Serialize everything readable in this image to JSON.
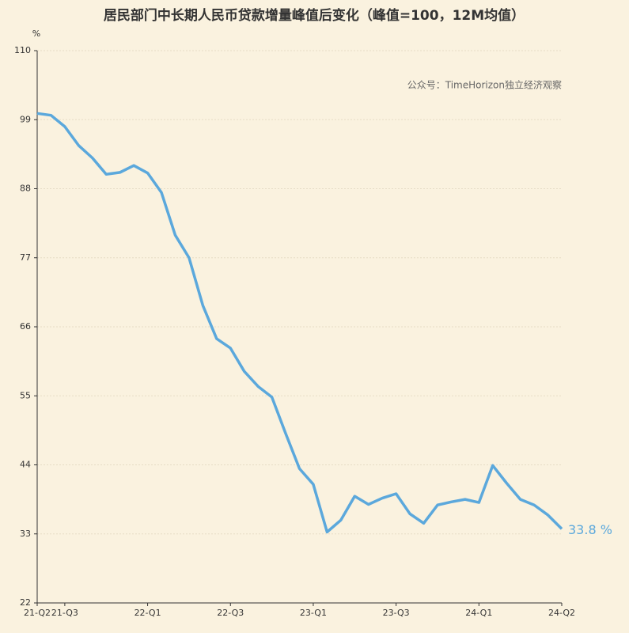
{
  "chart_data": {
    "type": "line",
    "title": "居民部门中长期人民币贷款增量峰值后变化（峰值=100，12M均值）",
    "y_unit": "%",
    "annotation": "公众号：TimeHorizon独立经济观察",
    "categories": [
      "21-Q2",
      null,
      "21-Q3",
      null,
      null,
      null,
      null,
      null,
      "22-Q1",
      null,
      null,
      null,
      null,
      null,
      "22-Q3",
      null,
      null,
      null,
      null,
      null,
      "23-Q1",
      null,
      null,
      null,
      null,
      null,
      "23-Q3",
      null,
      null,
      null,
      null,
      null,
      "24-Q1",
      null,
      null,
      null,
      null,
      null,
      "24-Q2"
    ],
    "series": [
      {
        "name": "居民部门中长期人民币贷款增量",
        "color": "#5ba8dc",
        "values": [
          100.0,
          99.7,
          97.9,
          94.9,
          92.9,
          90.3,
          90.6,
          91.7,
          90.5,
          87.4,
          80.6,
          77.0,
          69.4,
          64.1,
          62.6,
          58.9,
          56.5,
          54.8,
          49.0,
          43.4,
          40.9,
          33.3,
          35.2,
          39.0,
          37.7,
          38.7,
          39.4,
          36.2,
          34.7,
          37.6,
          38.1,
          38.5,
          38.0,
          43.9,
          41.1,
          38.5,
          37.6,
          36.0,
          33.8
        ],
        "value_labels": [
          null,
          null,
          null,
          null,
          null,
          null,
          null,
          null,
          null,
          null,
          null,
          null,
          null,
          null,
          null,
          null,
          null,
          null,
          null,
          null,
          null,
          null,
          null,
          null,
          null,
          null,
          null,
          null,
          null,
          null,
          null,
          null,
          null,
          null,
          null,
          null,
          null,
          null,
          "33.8 %"
        ]
      }
    ],
    "ylim": [
      22,
      110
    ],
    "yticks": [
      22,
      33,
      44,
      55,
      66,
      77,
      88,
      99,
      110
    ],
    "grid": true
  }
}
